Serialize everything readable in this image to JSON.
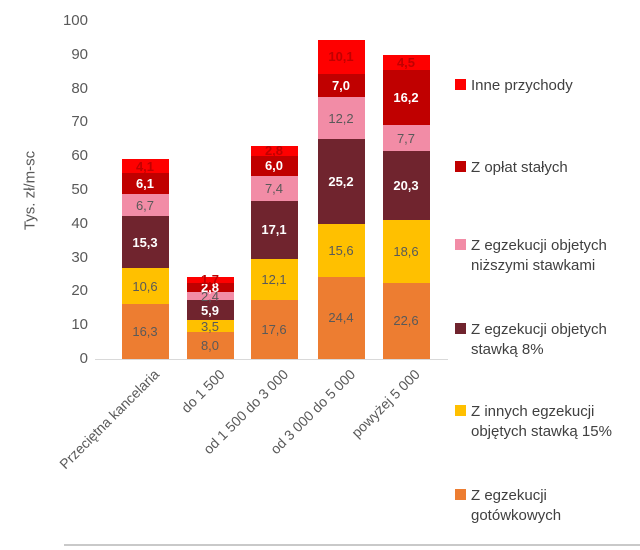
{
  "chart_data": {
    "type": "bar",
    "stacked": true,
    "title": "",
    "ylabel": "Tys. zł/m-sc",
    "xlabel": "",
    "ylim": [
      0,
      100
    ],
    "ytick_step": 10,
    "grid": false,
    "legend_position": "right",
    "categories": [
      "Przeciętna kancelaria",
      "do 1 500",
      "od 1 500 do 3 000",
      "od 3 000 do 5 000",
      "powyżej 5 000"
    ],
    "series": [
      {
        "name": "Z egzekucji gotówkowych",
        "color": "#ED7D31",
        "label_color": "#595959",
        "label_weight": "400",
        "values": [
          16.3,
          8.0,
          17.6,
          24.4,
          22.6
        ],
        "labels": [
          "16,3",
          "8,0",
          "17,6",
          "24,4",
          "22,6"
        ]
      },
      {
        "name": "Z innych egzekucji objętych stawką 15%",
        "color": "#FFC000",
        "label_color": "#595959",
        "label_weight": "400",
        "values": [
          10.6,
          3.5,
          12.1,
          15.6,
          18.6
        ],
        "labels": [
          "10,6",
          "3,5",
          "12,1",
          "15,6",
          "18,6"
        ]
      },
      {
        "name": "Z egzekucji objetych stawką 8%",
        "color": "#70242E",
        "label_color": "#FFFFFF",
        "label_weight": "700",
        "values": [
          15.3,
          5.9,
          17.1,
          25.2,
          20.3
        ],
        "labels": [
          "15,3",
          "5,9",
          "17,1",
          "25,2",
          "20,3"
        ]
      },
      {
        "name": "Z egzekucji objetych niższymi stawkami",
        "color": "#F28CA6",
        "label_color": "#595959",
        "label_weight": "400",
        "values": [
          6.7,
          2.4,
          7.4,
          12.2,
          7.7
        ],
        "labels": [
          "6,7",
          "2,4",
          "7,4",
          "12,2",
          "7,7"
        ]
      },
      {
        "name": "Z opłat stałych",
        "color": "#C00000",
        "label_color": "#FFFFFF",
        "label_weight": "700",
        "values": [
          6.1,
          2.8,
          6.0,
          7.0,
          16.2
        ],
        "labels": [
          "6,1",
          "2,8",
          "6,0",
          "7,0",
          "16,2"
        ]
      },
      {
        "name": "Inne przychody",
        "color": "#FE0000",
        "label_color": "#C00000",
        "label_weight": "700",
        "values": [
          4.1,
          1.7,
          2.8,
          10.1,
          4.5
        ],
        "labels": [
          "4,1",
          "1,7",
          "2,8",
          "10,1",
          "4,5"
        ]
      }
    ],
    "legend_items": [
      {
        "label": "Inne przychody",
        "color": "#FE0000"
      },
      {
        "label": "Z opłat stałych",
        "color": "#C00000"
      },
      {
        "label": "Z egzekucji objetych\nniższymi stawkami",
        "color": "#F28CA6"
      },
      {
        "label": "Z egzekucji objetych\nstawką 8%",
        "color": "#70242E"
      },
      {
        "label": "Z innych egzekucji\nobjętych stawką 15%",
        "color": "#FFC000"
      },
      {
        "label": "Z egzekucji\ngotówkowych",
        "color": "#ED7D31"
      }
    ]
  },
  "colors": {
    "axis_text": "#595959",
    "legend_text": "#404040",
    "axis_line": "#d9d9d9"
  }
}
